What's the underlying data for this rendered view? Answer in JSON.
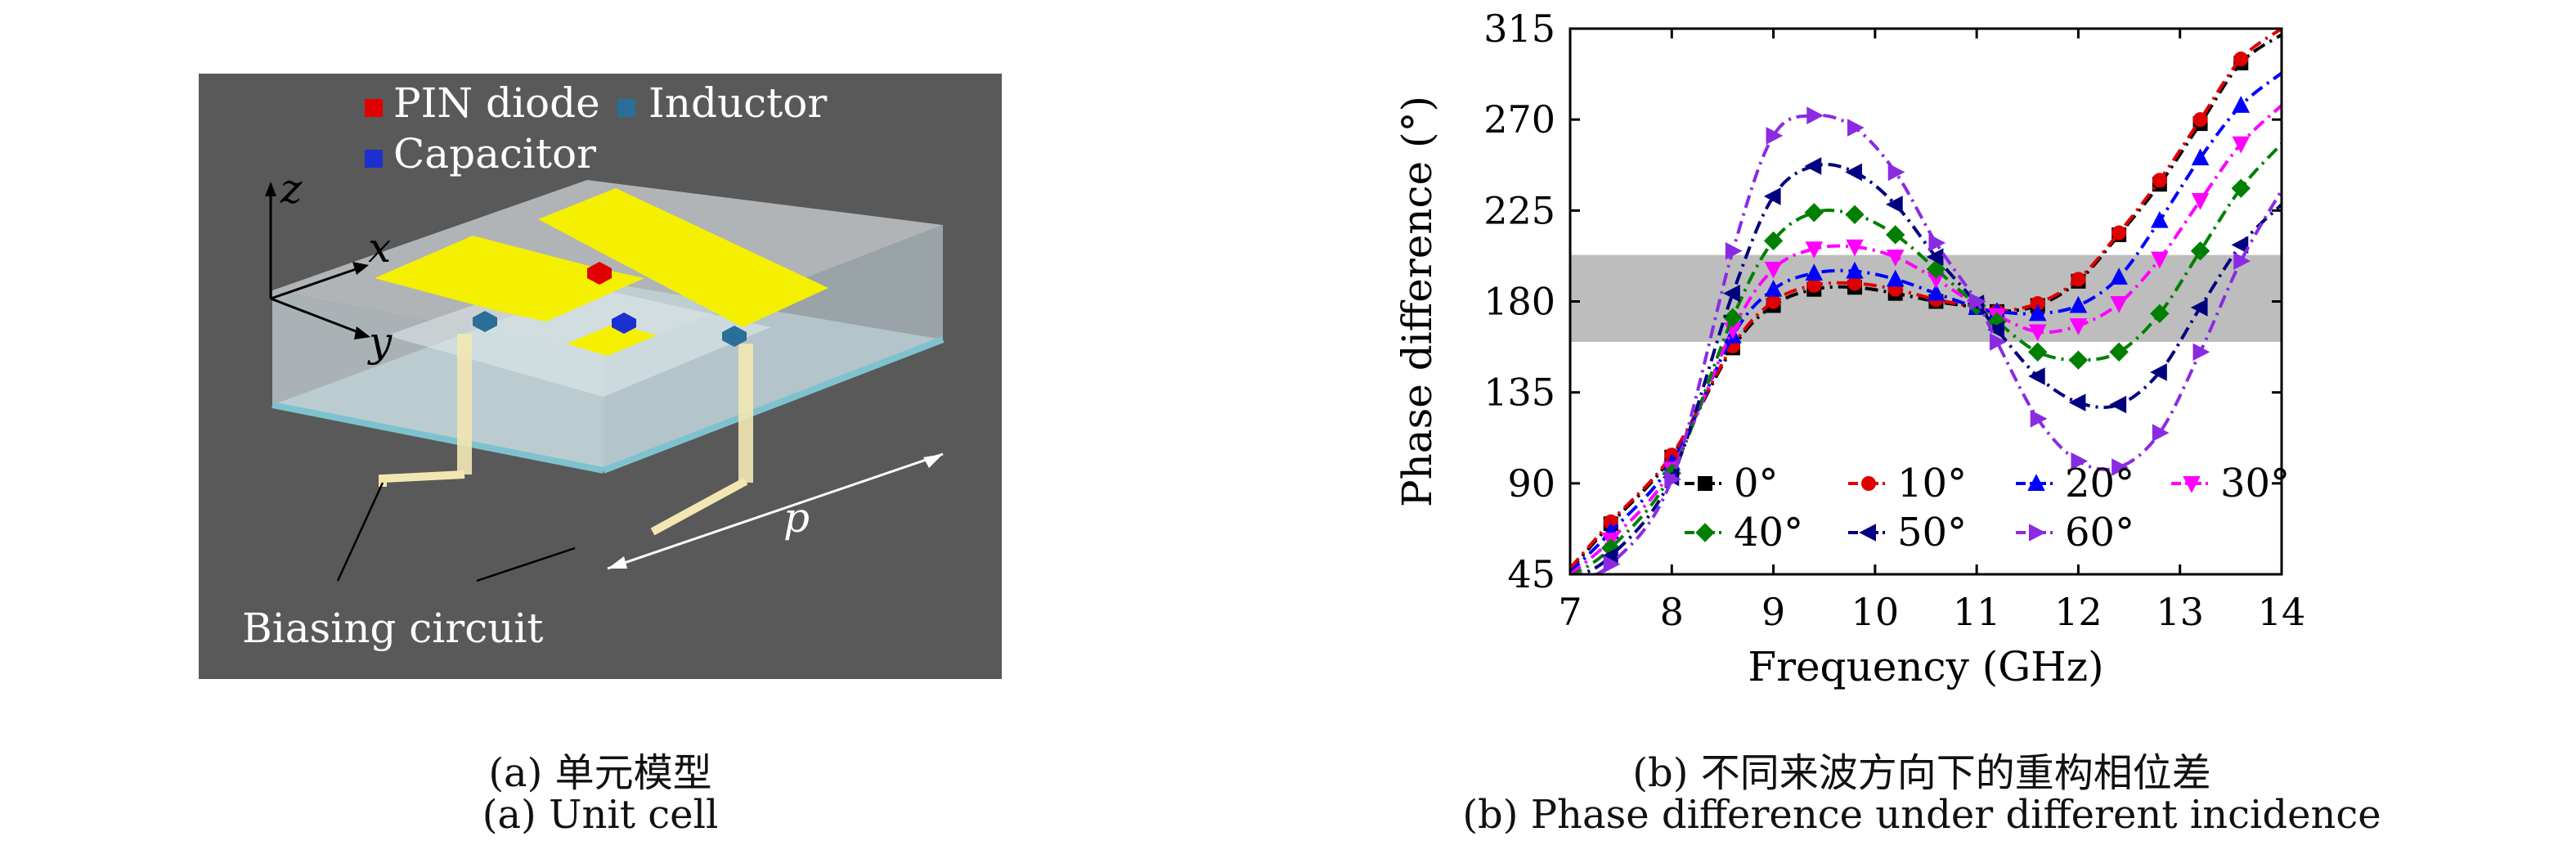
{
  "left_figure": {
    "legend": {
      "pin_diode": "PIN diode",
      "inductor": "Inductor",
      "capacitor": "Capacitor"
    },
    "colors": {
      "pin": "#e00000",
      "inductor": "#2a6f98",
      "capacitor": "#1c2fd0",
      "patch": "#f4f000"
    },
    "axes": {
      "z": "z",
      "x": "x",
      "y": "y"
    },
    "period_label": "p",
    "bias_label": "Biasing circuit",
    "caption_cn": "(a) 单元模型",
    "caption_en": "(a) Unit cell"
  },
  "right_figure": {
    "caption_cn": "(b) 不同来波方向下的重构相位差",
    "caption_en": "(b) Phase difference under different incidence"
  },
  "chart_data": {
    "type": "line",
    "xlabel": "Frequency (GHz)",
    "ylabel": "Phase difference (°)",
    "xlim": [
      7,
      14
    ],
    "ylim": [
      45,
      315
    ],
    "xticks": [
      "7",
      "8",
      "9",
      "10",
      "11",
      "12",
      "13",
      "14"
    ],
    "yticks": [
      "45",
      "90",
      "135",
      "180",
      "225",
      "270",
      "315"
    ],
    "shaded_band": [
      160,
      203
    ],
    "x": [
      7.0,
      7.4,
      8.0,
      8.6,
      9.0,
      9.4,
      9.8,
      10.2,
      10.6,
      11.0,
      11.2,
      11.6,
      12.0,
      12.4,
      12.8,
      13.2,
      13.6,
      14.0
    ],
    "series": [
      {
        "name": "0°",
        "color": "#000000",
        "marker": "square",
        "values": [
          47,
          70,
          103,
          157,
          178,
          186,
          187,
          184,
          180,
          177,
          175,
          178,
          190,
          213,
          238,
          268,
          298,
          312
        ]
      },
      {
        "name": "10°",
        "color": "#e00000",
        "marker": "circle",
        "values": [
          48,
          71,
          104,
          158,
          180,
          188,
          189,
          186,
          181,
          177,
          175,
          179,
          191,
          214,
          240,
          270,
          300,
          315
        ]
      },
      {
        "name": "20°",
        "color": "#0000ff",
        "marker": "triangle-up",
        "values": [
          46,
          66,
          100,
          163,
          186,
          194,
          195,
          191,
          184,
          177,
          175,
          174,
          178,
          192,
          220,
          251,
          277,
          293
        ]
      },
      {
        "name": "30°",
        "color": "#ff00ff",
        "marker": "triangle-down",
        "values": [
          45,
          62,
          97,
          166,
          196,
          206,
          207,
          202,
          191,
          178,
          173,
          165,
          168,
          179,
          201,
          230,
          258,
          277
        ]
      },
      {
        "name": "40°",
        "color": "#008000",
        "marker": "diamond",
        "values": [
          44,
          58,
          95,
          172,
          210,
          224,
          223,
          213,
          196,
          178,
          170,
          155,
          151,
          155,
          174,
          205,
          236,
          258
        ]
      },
      {
        "name": "50°",
        "color": "#000080",
        "marker": "triangle-left",
        "values": [
          43,
          54,
          93,
          184,
          232,
          247,
          244,
          228,
          202,
          179,
          166,
          143,
          130,
          129,
          145,
          177,
          208,
          228
        ]
      },
      {
        "name": "60°",
        "color": "#8a2be2",
        "marker": "triangle-right",
        "values": [
          42,
          50,
          92,
          205,
          262,
          272,
          266,
          244,
          209,
          180,
          160,
          122,
          101,
          98,
          115,
          155,
          200,
          235
        ]
      }
    ]
  }
}
